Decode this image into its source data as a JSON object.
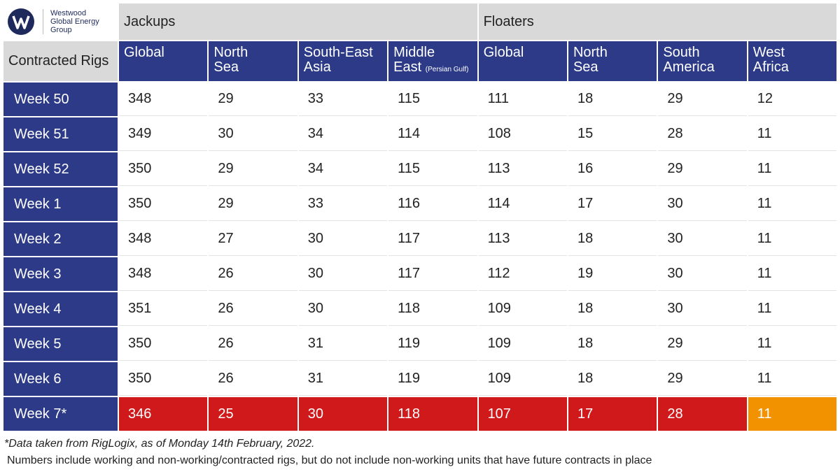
{
  "logo": {
    "lines": [
      "Westwood",
      "Global Energy",
      "Group"
    ]
  },
  "table": {
    "groups": [
      "Jackups",
      "Floaters"
    ],
    "row_header": "Contracted Rigs",
    "columns": [
      {
        "lines": [
          "Global"
        ]
      },
      {
        "lines": [
          "North",
          "Sea"
        ]
      },
      {
        "lines": [
          "South-East",
          "Asia"
        ]
      },
      {
        "lines": [
          "Middle",
          "East"
        ],
        "note": "(Persian Gulf)"
      },
      {
        "lines": [
          "Global"
        ]
      },
      {
        "lines": [
          "North",
          "Sea"
        ]
      },
      {
        "lines": [
          "South",
          "America"
        ]
      },
      {
        "lines": [
          "West",
          "Africa"
        ]
      }
    ],
    "rows": [
      {
        "label": "Week 50",
        "values": [
          348,
          29,
          33,
          115,
          111,
          18,
          29,
          12
        ]
      },
      {
        "label": "Week 51",
        "values": [
          349,
          30,
          34,
          114,
          108,
          15,
          28,
          11
        ]
      },
      {
        "label": "Week 52",
        "values": [
          350,
          29,
          34,
          115,
          113,
          16,
          29,
          11
        ]
      },
      {
        "label": "Week 1",
        "values": [
          350,
          29,
          33,
          116,
          114,
          17,
          30,
          11
        ]
      },
      {
        "label": "Week 2",
        "values": [
          348,
          27,
          30,
          117,
          113,
          18,
          30,
          11
        ]
      },
      {
        "label": "Week 3",
        "values": [
          348,
          26,
          30,
          117,
          112,
          19,
          30,
          11
        ]
      },
      {
        "label": "Week 4",
        "values": [
          351,
          26,
          30,
          118,
          109,
          18,
          30,
          11
        ]
      },
      {
        "label": "Week 5",
        "values": [
          350,
          26,
          31,
          119,
          109,
          18,
          29,
          11
        ]
      },
      {
        "label": "Week 6",
        "values": [
          350,
          26,
          31,
          119,
          109,
          18,
          29,
          11
        ]
      },
      {
        "label": "Week 7*",
        "values": [
          346,
          25,
          30,
          118,
          107,
          17,
          28,
          11
        ],
        "fills": [
          "#d0191b",
          "#d0191b",
          "#d0191b",
          "#d0191b",
          "#d0191b",
          "#d0191b",
          "#d0191b",
          "#f39200"
        ]
      }
    ]
  },
  "footnotes": [
    "*Data taken from RigLogix, as of Monday 14th February, 2022.",
    "Numbers include working and non-working/contracted rigs, but do not include non-working units that have future contracts in place"
  ]
}
